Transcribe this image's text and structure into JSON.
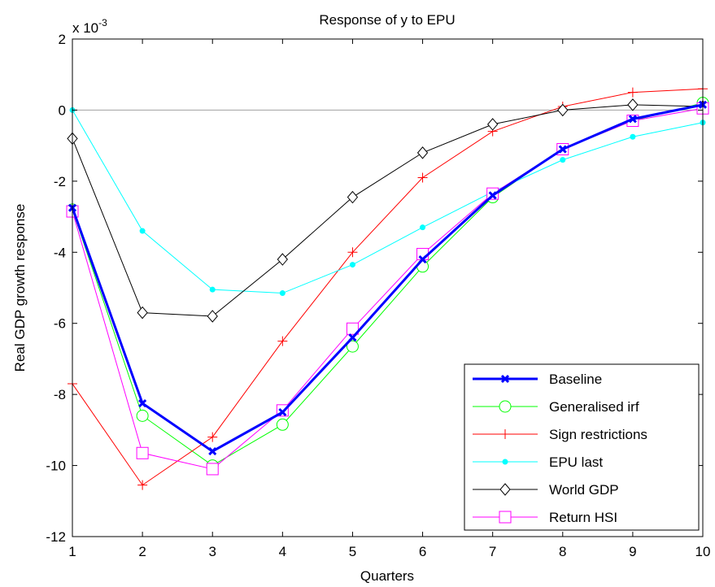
{
  "chart_data": {
    "type": "line",
    "title": "Response of y to EPU",
    "xlabel": "Quarters",
    "ylabel": "Real GDP growth response",
    "y_scale_label": "x 10",
    "y_scale_exponent": "-3",
    "xlim": [
      1,
      10
    ],
    "ylim": [
      -12,
      2
    ],
    "x_ticks": [
      1,
      2,
      3,
      4,
      5,
      6,
      7,
      8,
      9,
      10
    ],
    "y_ticks": [
      -12,
      -10,
      -8,
      -6,
      -4,
      -2,
      0,
      2
    ],
    "grid": false,
    "zero_line": true,
    "legend_position": "bottom-right",
    "x": [
      1,
      2,
      3,
      4,
      5,
      6,
      7,
      8,
      9,
      10
    ],
    "series": [
      {
        "name": "Baseline",
        "color": "#0000ff",
        "marker": "x",
        "line_width": 3,
        "values": [
          -2.75,
          -8.25,
          -9.6,
          -8.5,
          -6.4,
          -4.2,
          -2.4,
          -1.1,
          -0.25,
          0.15
        ]
      },
      {
        "name": "Generalised irf",
        "color": "#00ff00",
        "marker": "circle",
        "line_width": 1,
        "values": [
          -2.8,
          -8.6,
          -10.0,
          -8.85,
          -6.65,
          -4.4,
          -2.45,
          -1.1,
          -0.3,
          0.2
        ]
      },
      {
        "name": "Sign restrictions",
        "color": "#ff0000",
        "marker": "plus",
        "line_width": 1,
        "values": [
          -7.7,
          -10.55,
          -9.2,
          -6.5,
          -4.0,
          -1.9,
          -0.6,
          0.1,
          0.5,
          0.6
        ]
      },
      {
        "name": "EPU last",
        "color": "#00ffff",
        "marker": "dot",
        "line_width": 1,
        "values": [
          0.0,
          -3.4,
          -5.05,
          -5.15,
          -4.35,
          -3.3,
          -2.3,
          -1.4,
          -0.75,
          -0.35
        ]
      },
      {
        "name": "World GDP",
        "color": "#000000",
        "marker": "diamond",
        "line_width": 1,
        "values": [
          -0.8,
          -5.7,
          -5.8,
          -4.2,
          -2.45,
          -1.2,
          -0.4,
          0.0,
          0.15,
          0.1
        ]
      },
      {
        "name": "Return HSI",
        "color": "#ff00ff",
        "marker": "square",
        "line_width": 1,
        "values": [
          -2.85,
          -9.65,
          -10.1,
          -8.45,
          -6.15,
          -4.05,
          -2.35,
          -1.1,
          -0.3,
          0.05
        ]
      }
    ]
  }
}
